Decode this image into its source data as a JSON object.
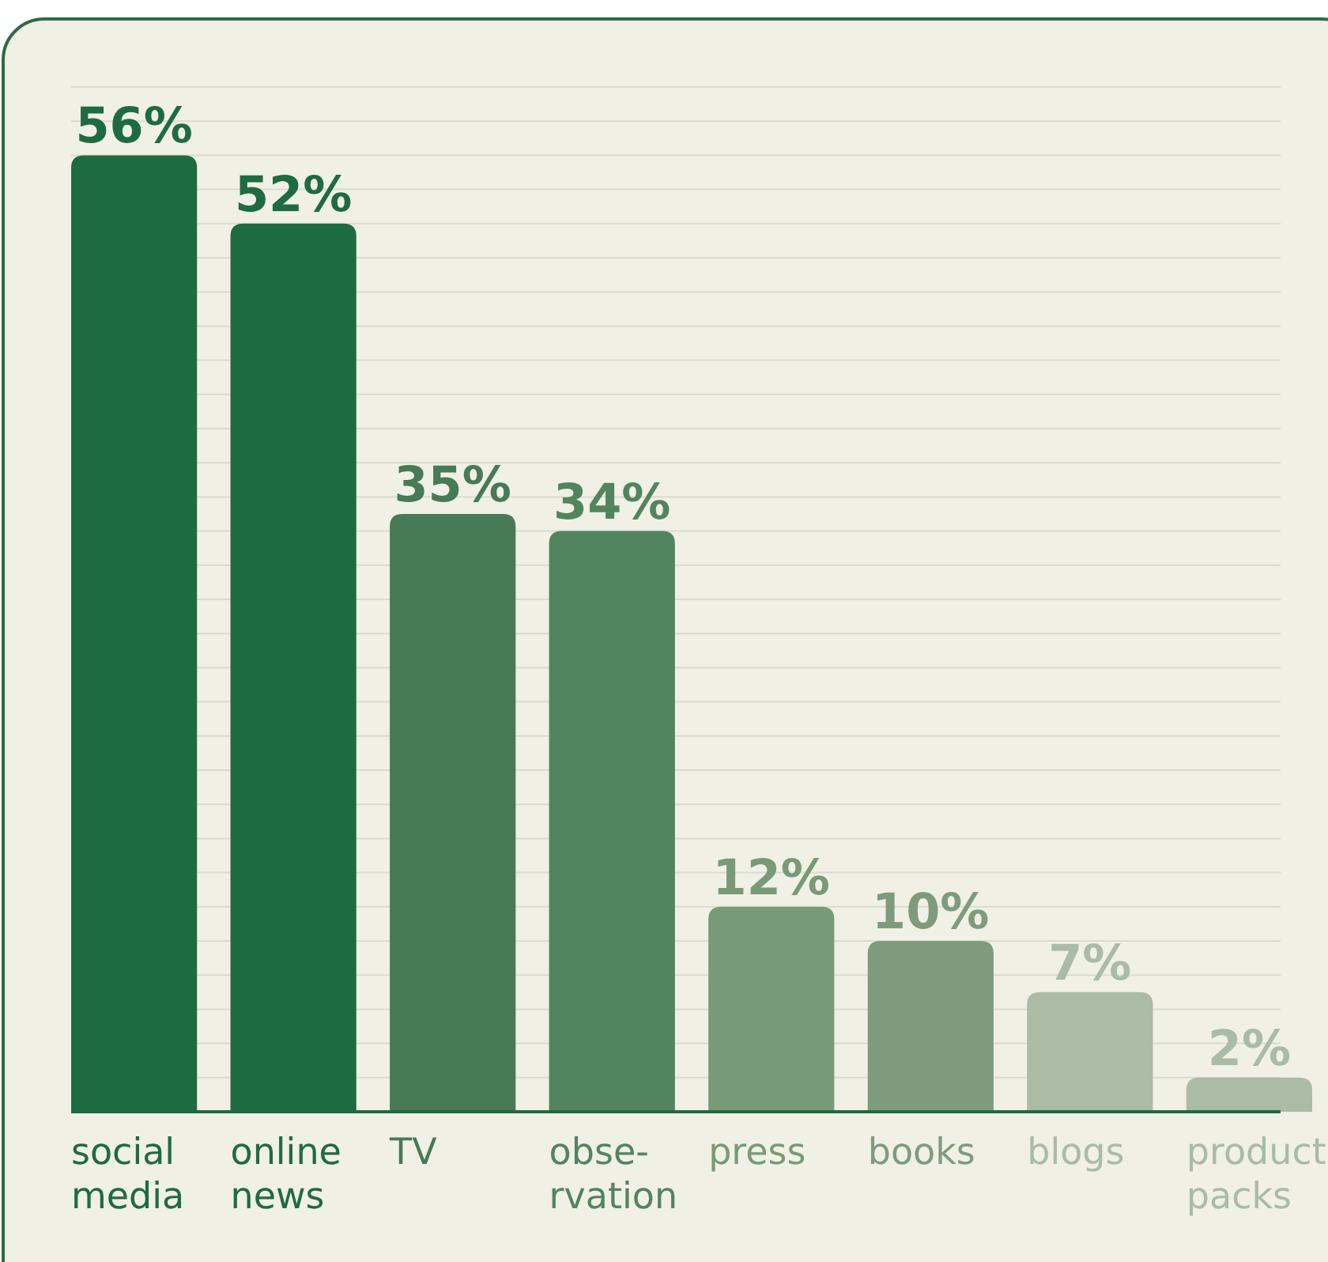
{
  "chart_data": {
    "type": "bar",
    "categories": [
      "social\nmedia",
      "online\nnews",
      "TV",
      "obse-\nrvation",
      "press",
      "books",
      "blogs",
      "product\npacks"
    ],
    "values": [
      56,
      52,
      35,
      34,
      12,
      10,
      7,
      2
    ],
    "colors": [
      "#1f6b41",
      "#1f6b41",
      "#477a56",
      "#52845f",
      "#789a77",
      "#7f9b7e",
      "#aabba6",
      "#aabba6"
    ],
    "value_labels": [
      "56%",
      "52%",
      "35%",
      "34%",
      "12%",
      "10%",
      "7%",
      "2%"
    ],
    "ylim": [
      0,
      60
    ],
    "yticks": [
      {
        "value": 0,
        "label": null
      },
      {
        "value": 2,
        "label": null
      },
      {
        "value": 4,
        "label": null
      },
      {
        "value": 6,
        "label": null
      },
      {
        "value": 8,
        "label": null
      },
      {
        "value": 10,
        "label": null
      },
      {
        "value": 12,
        "label": null
      },
      {
        "value": 14,
        "label": null
      },
      {
        "value": 16,
        "label": null
      },
      {
        "value": 18,
        "label": null
      },
      {
        "value": 20,
        "label": null
      },
      {
        "value": 22,
        "label": null
      },
      {
        "value": 24,
        "label": null
      },
      {
        "value": 26,
        "label": null
      },
      {
        "value": 28,
        "label": null
      },
      {
        "value": 30,
        "label": null
      },
      {
        "value": 32,
        "label": null
      },
      {
        "value": 34,
        "label": null
      },
      {
        "value": 36,
        "label": null
      },
      {
        "value": 38,
        "label": null
      },
      {
        "value": 40,
        "label": null
      },
      {
        "value": 42,
        "label": null
      },
      {
        "value": 44,
        "label": null
      },
      {
        "value": 46,
        "label": null
      },
      {
        "value": 48,
        "label": null
      },
      {
        "value": 50,
        "label": null
      },
      {
        "value": 52,
        "label": null
      },
      {
        "value": 54,
        "label": null
      },
      {
        "value": 56,
        "label": null
      },
      {
        "value": 58,
        "label": null
      },
      {
        "value": 60,
        "label": null
      }
    ],
    "grid": "y",
    "tick_labels": "x"
  }
}
